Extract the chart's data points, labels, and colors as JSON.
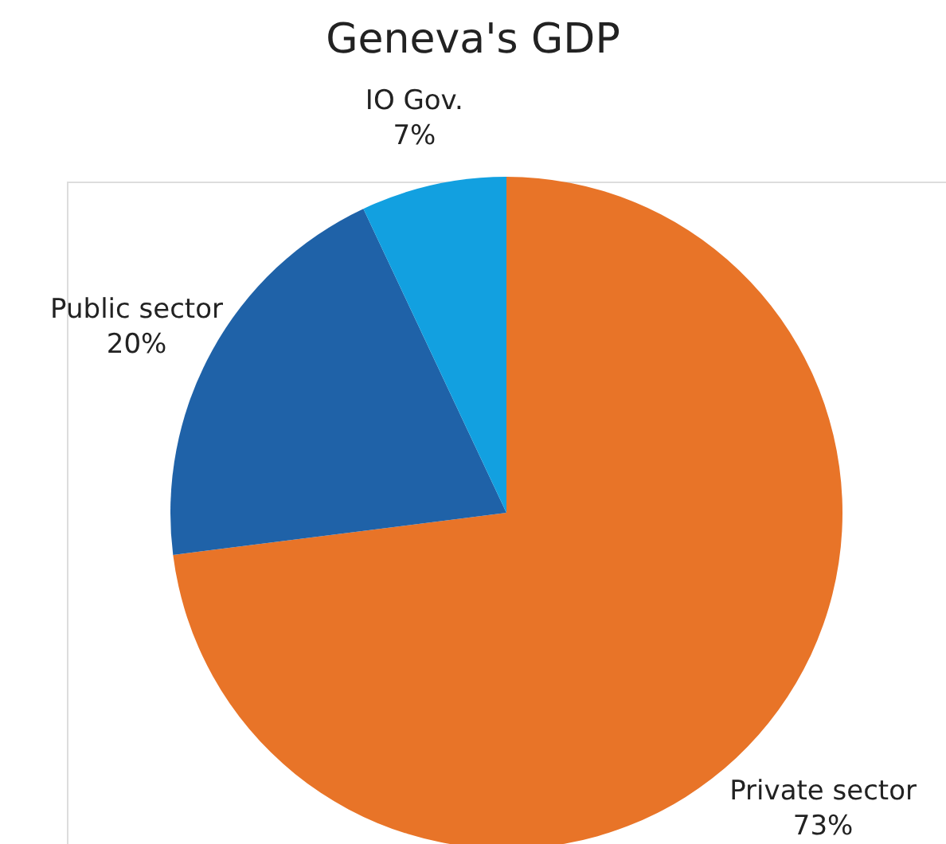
{
  "chart_data": {
    "type": "pie",
    "title": "Geneva's GDP",
    "categories": [
      "Private sector",
      "Public sector",
      "IO Gov."
    ],
    "values": [
      73,
      20,
      7
    ],
    "value_labels": [
      "73%",
      "20%",
      "7%"
    ],
    "colors": [
      "#e87428",
      "#1f62a8",
      "#12a0e0"
    ],
    "legend": false
  }
}
